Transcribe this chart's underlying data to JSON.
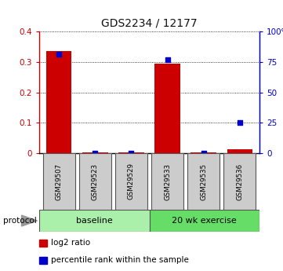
{
  "title": "GDS2234 / 12177",
  "samples": [
    "GSM29507",
    "GSM29523",
    "GSM29529",
    "GSM29533",
    "GSM29535",
    "GSM29536"
  ],
  "log2_ratio": [
    0.335,
    0.003,
    0.003,
    0.295,
    0.003,
    0.013
  ],
  "percentile_rank": [
    81,
    0,
    0,
    77,
    0,
    25
  ],
  "groups": [
    {
      "label": "baseline",
      "color": "#aaf0aa"
    },
    {
      "label": "20 wk exercise",
      "color": "#66dd66"
    }
  ],
  "protocol_label": "protocol",
  "left_axis_color": "#cc0000",
  "right_axis_color": "#0000cc",
  "bar_color": "#cc0000",
  "dot_color": "#0000cc",
  "ylim_left": [
    0,
    0.4
  ],
  "ylim_right": [
    0,
    100
  ],
  "yticks_left": [
    0,
    0.1,
    0.2,
    0.3,
    0.4
  ],
  "ytick_labels_left": [
    "0",
    "0.1",
    "0.2",
    "0.3",
    "0.4"
  ],
  "yticks_right": [
    0,
    25,
    50,
    75,
    100
  ],
  "ytick_labels_right": [
    "0",
    "25",
    "50",
    "75",
    "100%"
  ],
  "legend_items": [
    {
      "label": "log2 ratio",
      "color": "#cc0000"
    },
    {
      "label": "percentile rank within the sample",
      "color": "#0000cc"
    }
  ],
  "sample_box_color": "#cccccc",
  "grid_color": "#000000",
  "title_fontsize": 10
}
